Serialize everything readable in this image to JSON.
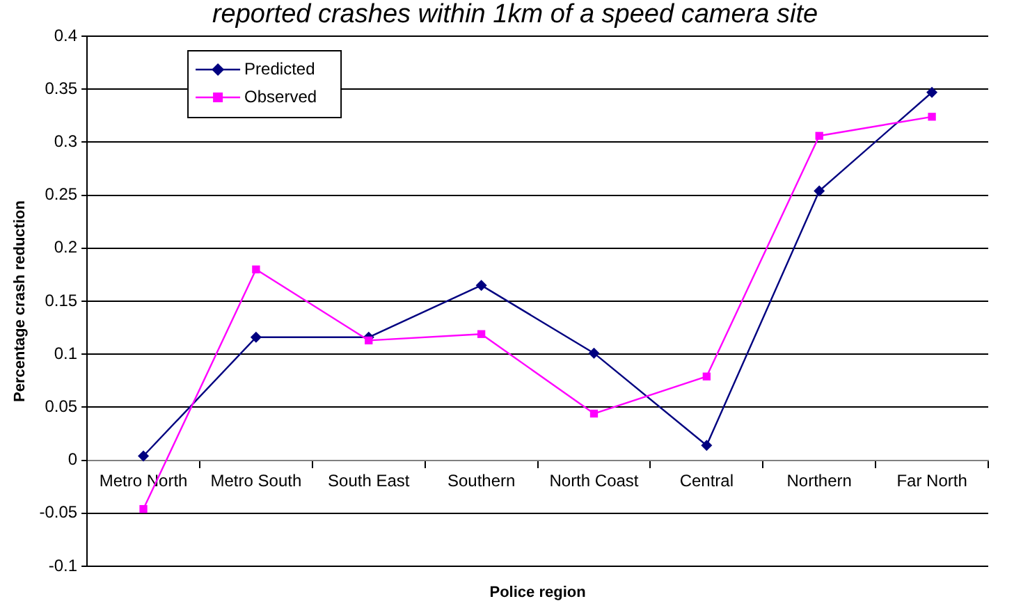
{
  "chart_data": {
    "type": "line",
    "title": "reported crashes within 1km of a speed camera site",
    "xlabel": "Police region",
    "ylabel": "Percentage crash reduction",
    "categories": [
      "Metro North",
      "Metro South",
      "South East",
      "Southern",
      "North Coast",
      "Central",
      "Northern",
      "Far North"
    ],
    "series": [
      {
        "name": "Predicted",
        "color": "#000080",
        "marker": "diamond",
        "values": [
          0.004,
          0.116,
          0.116,
          0.165,
          0.101,
          0.014,
          0.254,
          0.347
        ]
      },
      {
        "name": "Observed",
        "color": "#ff00ff",
        "marker": "square",
        "values": [
          -0.046,
          0.18,
          0.113,
          0.119,
          0.044,
          0.079,
          0.306,
          0.324
        ]
      }
    ],
    "ylim": [
      -0.1,
      0.4
    ],
    "yticks": [
      -0.1,
      -0.05,
      0,
      0.05,
      0.1,
      0.15,
      0.2,
      0.25,
      0.3,
      0.35,
      0.4
    ],
    "grid": "y",
    "legend": "top left",
    "line_style": "solid"
  }
}
